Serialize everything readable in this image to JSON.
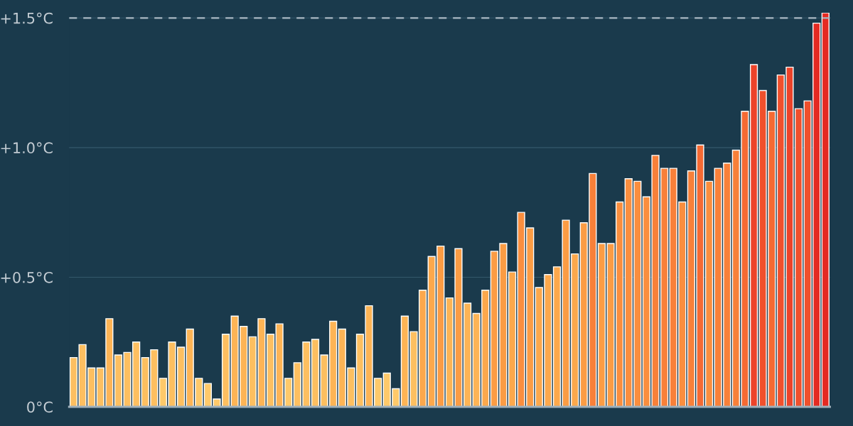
{
  "chart_data": {
    "type": "bar",
    "categories": [
      null,
      null,
      null,
      null,
      null,
      null,
      null,
      null,
      null,
      null,
      null,
      null,
      null,
      null,
      null,
      null,
      null,
      null,
      null,
      null,
      null,
      null,
      null,
      null,
      null,
      null,
      null,
      null,
      null,
      null,
      null,
      null,
      null,
      null,
      null,
      null,
      null,
      null,
      null,
      null,
      null,
      null,
      null,
      null,
      null,
      null,
      null,
      null,
      null,
      null,
      null,
      null,
      null,
      null,
      null,
      null,
      null,
      null,
      null,
      null,
      null,
      null,
      null,
      null,
      null,
      null,
      null,
      null,
      null,
      null,
      null,
      null,
      null,
      null,
      null,
      null,
      null,
      null,
      null,
      null,
      null,
      null,
      null,
      null,
      null
    ],
    "values": [
      0.19,
      0.24,
      0.15,
      0.15,
      0.34,
      0.2,
      0.21,
      0.25,
      0.19,
      0.22,
      0.11,
      0.25,
      0.23,
      0.3,
      0.11,
      0.09,
      0.03,
      0.28,
      0.35,
      0.31,
      0.27,
      0.34,
      0.28,
      0.32,
      0.11,
      0.17,
      0.25,
      0.26,
      0.2,
      0.33,
      0.3,
      0.15,
      0.28,
      0.39,
      0.11,
      0.13,
      0.07,
      0.35,
      0.29,
      0.45,
      0.58,
      0.62,
      0.42,
      0.61,
      0.4,
      0.36,
      0.45,
      0.6,
      0.63,
      0.52,
      0.75,
      0.69,
      0.46,
      0.51,
      0.54,
      0.72,
      0.59,
      0.71,
      0.9,
      0.63,
      0.63,
      0.79,
      0.88,
      0.87,
      0.81,
      0.97,
      0.92,
      0.92,
      0.79,
      0.91,
      1.01,
      0.87,
      0.92,
      0.94,
      0.99,
      1.14,
      1.32,
      1.22,
      1.14,
      1.28,
      1.31,
      1.15,
      1.18,
      1.48,
      1.52
    ],
    "colors": [
      "#fdbf60",
      "#fdbf60",
      "#fdbf60",
      "#fdbf60",
      "#fdb455",
      "#fdbf60",
      "#fdbf60",
      "#fdbf60",
      "#fdbf60",
      "#fdbf60",
      "#fec96a",
      "#fdbf60",
      "#fdbf60",
      "#fdb455",
      "#fec96a",
      "#fec96a",
      "#fec96a",
      "#fdbf60",
      "#fdb455",
      "#fdb455",
      "#fdbf60",
      "#fdb455",
      "#fdbf60",
      "#fdb455",
      "#fec96a",
      "#fdbf60",
      "#fdbf60",
      "#fdbf60",
      "#fdbf60",
      "#fdb455",
      "#fdb455",
      "#fdbf60",
      "#fdbf60",
      "#fdb455",
      "#fec96a",
      "#fec96a",
      "#fec96a",
      "#fdb455",
      "#fdbf60",
      "#fca84c",
      "#fca84c",
      "#fb9c44",
      "#fdb455",
      "#fb9c44",
      "#fdb455",
      "#fdb455",
      "#fca84c",
      "#fb9c44",
      "#fb9c44",
      "#fca84c",
      "#fa8e3e",
      "#fb9c44",
      "#fca84c",
      "#fca84c",
      "#fca84c",
      "#fb9c44",
      "#fca84c",
      "#fb9c44",
      "#f88039",
      "#fb9c44",
      "#fb9c44",
      "#fa8e3e",
      "#fa8e3e",
      "#fa8e3e",
      "#fa8e3e",
      "#f88039",
      "#f88039",
      "#f88039",
      "#fa8e3e",
      "#f88039",
      "#f56a33",
      "#fa8e3e",
      "#f88039",
      "#f88039",
      "#f88039",
      "#f56a33",
      "#ec4329",
      "#f0502c",
      "#f56a33",
      "#f0502c",
      "#ec4329",
      "#f0502c",
      "#f0502c",
      "#e42a22",
      "#e42a22"
    ],
    "ylim": [
      0,
      1.52
    ],
    "yticks": [
      {
        "value": 0,
        "label": "0°C"
      },
      {
        "value": 0.5,
        "label": "+0.5°C"
      },
      {
        "value": 1.0,
        "label": "+1.0°C"
      },
      {
        "value": 1.5,
        "label": "+1.5°C"
      }
    ],
    "grid": "y",
    "ref_lines": [
      {
        "axis": "y",
        "value": 1.5,
        "color": "#a9b8c2",
        "line_style": "dashed"
      }
    ]
  }
}
